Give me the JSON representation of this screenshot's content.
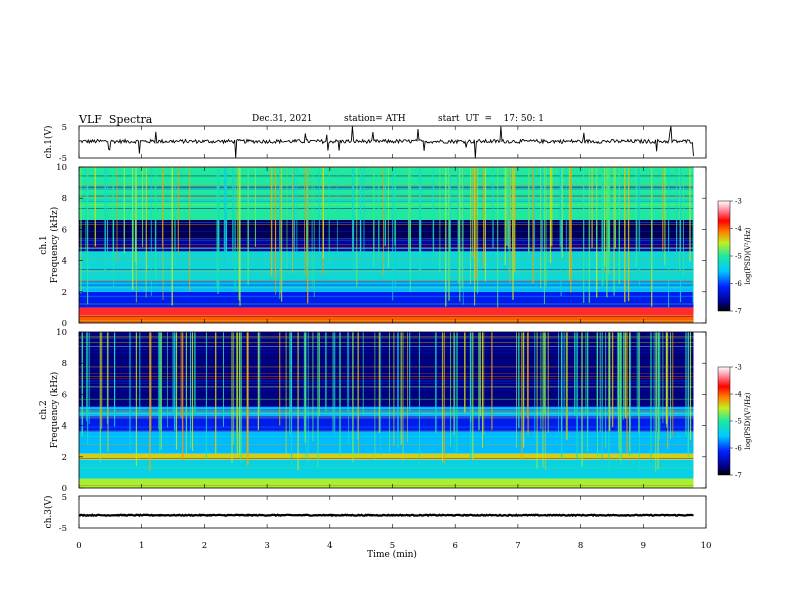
{
  "header": {
    "title": "VLF  Spectra",
    "date": "Dec.31, 2021",
    "station": "station= ATH",
    "start": "start  UT  =    17: 50: 1"
  },
  "chart_data": [
    {
      "id": "ch1-waveform",
      "type": "line",
      "ylabel": "ch.1(V)",
      "ylim": [
        -5,
        5
      ],
      "yticks": [
        "5",
        "-5"
      ],
      "xlim": [
        0,
        10
      ],
      "data_end_min": 9.8,
      "baseline_v": 0.2,
      "noise_amplitude_v": 1.2,
      "color": "#000000"
    },
    {
      "id": "ch1-spectrogram",
      "type": "heatmap",
      "ylabel_line1": "ch.1",
      "ylabel_line2": "Frequency  (kHz)",
      "ylim": [
        0,
        10
      ],
      "yticks": [
        "0",
        "2",
        "4",
        "6",
        "8",
        "10"
      ],
      "xlim": [
        0,
        10
      ],
      "data_end_min": 9.8,
      "colorbar_label": "log(PSD)(V²/Hz)",
      "colorbar_range": [
        -7,
        -3
      ],
      "colorbar_ticks": [
        "-3",
        "-4",
        "-5",
        "-6",
        "-7"
      ],
      "bands": [
        {
          "f_low": 0.0,
          "f_high": 0.5,
          "level": -4.0
        },
        {
          "f_low": 0.5,
          "f_high": 1.0,
          "level": -3.6
        },
        {
          "f_low": 1.0,
          "f_high": 2.0,
          "level": -6.2
        },
        {
          "f_low": 2.0,
          "f_high": 2.6,
          "level": -5.6
        },
        {
          "f_low": 2.6,
          "f_high": 4.6,
          "level": -5.3
        },
        {
          "f_low": 4.6,
          "f_high": 5.4,
          "level": -6.6
        },
        {
          "f_low": 5.4,
          "f_high": 6.6,
          "level": -6.8
        },
        {
          "f_low": 6.6,
          "f_high": 10.0,
          "level": -5.0
        }
      ]
    },
    {
      "id": "ch2-spectrogram",
      "type": "heatmap",
      "ylabel_line1": "ch.2",
      "ylabel_line2": "Frequency  (kHz)",
      "ylim": [
        0,
        10
      ],
      "yticks": [
        "0",
        "2",
        "4",
        "6",
        "8",
        "10"
      ],
      "xlim": [
        0,
        10
      ],
      "data_end_min": 9.8,
      "colorbar_label": "log(PSD)(V²/Hz)",
      "colorbar_range": [
        -7,
        -3
      ],
      "colorbar_ticks": [
        "-3",
        "-4",
        "-5",
        "-6",
        "-7"
      ],
      "bands": [
        {
          "f_low": 0.0,
          "f_high": 0.6,
          "level": -4.6
        },
        {
          "f_low": 0.6,
          "f_high": 1.8,
          "level": -5.4
        },
        {
          "f_low": 1.8,
          "f_high": 2.2,
          "level": -4.4
        },
        {
          "f_low": 2.2,
          "f_high": 3.6,
          "level": -5.6
        },
        {
          "f_low": 3.6,
          "f_high": 4.6,
          "level": -6.2
        },
        {
          "f_low": 4.6,
          "f_high": 5.2,
          "level": -5.6
        },
        {
          "f_low": 5.2,
          "f_high": 10.0,
          "level": -6.7
        }
      ]
    },
    {
      "id": "ch3-waveform",
      "type": "line",
      "ylabel": "ch.3(V)",
      "ylim": [
        -5,
        5
      ],
      "yticks": [
        "5",
        "-5"
      ],
      "xlim": [
        0,
        10
      ],
      "xticks": [
        "0",
        "1",
        "2",
        "3",
        "4",
        "5",
        "6",
        "7",
        "8",
        "9",
        "10"
      ],
      "xlabel": "Time  (min)",
      "data_end_min": 9.8,
      "baseline_v": -1.0,
      "noise_amplitude_v": 0.3,
      "color": "#000000"
    }
  ]
}
